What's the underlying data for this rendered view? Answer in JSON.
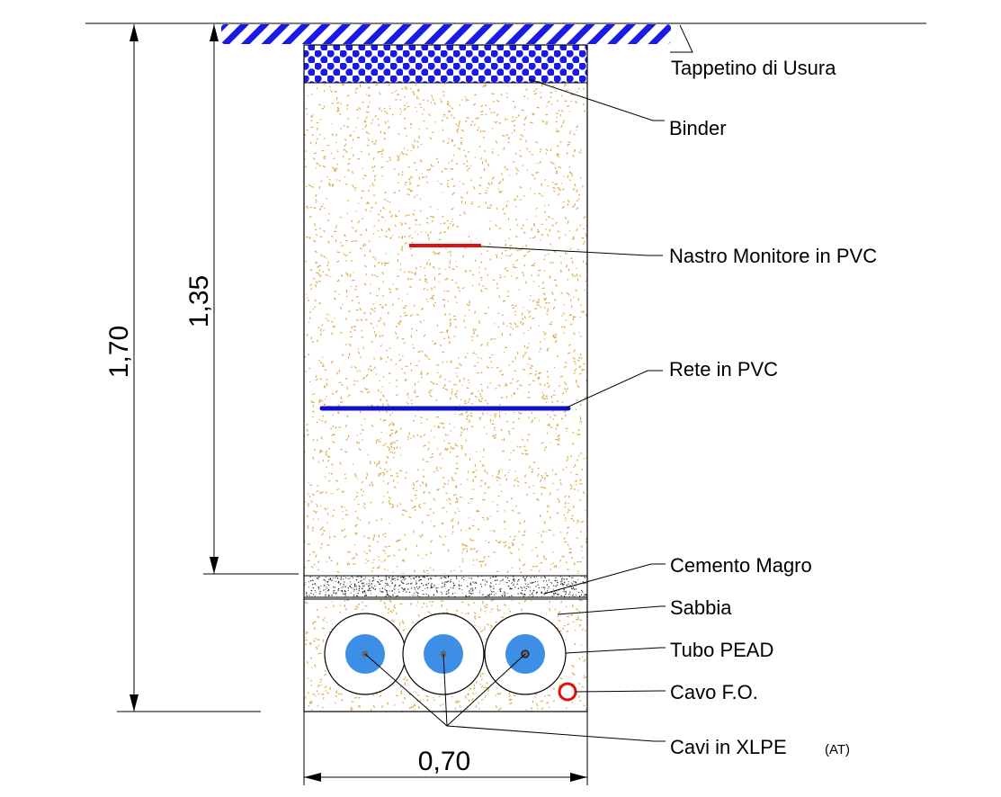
{
  "labels": {
    "tappetino": "Tappetino di Usura",
    "binder": "Binder",
    "nastro": "Nastro Monitore in PVC",
    "rete": "Rete in PVC",
    "cemento": "Cemento Magro",
    "sabbia": "Sabbia",
    "tubo": "Tubo PEAD",
    "cavo_fo": "Cavo F.O.",
    "cavi_main": "Cavi in XLPE",
    "cavi_suffix": "(AT)"
  },
  "dimensions": {
    "total_depth": "1,70",
    "cable_depth": "1,35",
    "width": "0,70"
  },
  "colors": {
    "asphalt_hatch": "#1a1ae6",
    "binder_dots": "#1a1ae6",
    "fill_speckle": "#d9a640",
    "nastro": "#e01010",
    "rete": "#1010c8",
    "cable_core": "#3d8fe6",
    "fo_cable": "#e01010"
  }
}
